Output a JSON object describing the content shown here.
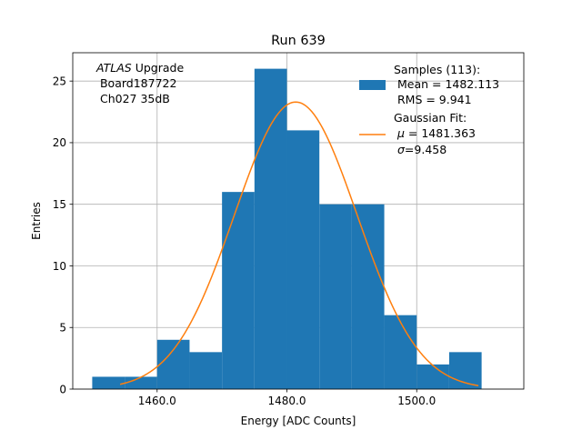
{
  "chart_data": {
    "type": "histogram",
    "title": "Run 639",
    "xlabel": "Energy [ADC Counts]",
    "ylabel": "Entries",
    "xlim": [
      1447.0,
      1516.5
    ],
    "ylim": [
      0,
      27.3
    ],
    "grid": true,
    "xticks": [
      1460,
      1480,
      1500
    ],
    "xtick_labels": [
      "1460.0",
      "1480.0",
      "1500.0"
    ],
    "yticks": [
      0,
      5,
      10,
      15,
      20,
      25
    ],
    "ytick_labels": [
      "0",
      "5",
      "10",
      "15",
      "20",
      "25"
    ],
    "bin_edges": [
      1450,
      1455,
      1460,
      1465,
      1470,
      1475,
      1480,
      1485,
      1490,
      1495,
      1500,
      1505,
      1510
    ],
    "counts": [
      1,
      1,
      4,
      3,
      16,
      26,
      21,
      15,
      15,
      6,
      2,
      3
    ],
    "bar_color": "#1f77b4",
    "fit": {
      "type": "gaussian",
      "color": "#ff7f0e",
      "mu": 1481.363,
      "sigma": 9.458,
      "amplitude": 23.3,
      "x_range": [
        1454.3,
        1509.5
      ]
    },
    "annotation": {
      "line1_italic": "ATLAS",
      "line1_rest": " Upgrade",
      "line2": " Board187722",
      "line3": " Ch027 35dB"
    },
    "legend": {
      "placement": "upper right",
      "samples_title": "Samples (113):",
      "samples_mean": " Mean = 1482.113",
      "samples_rms": " RMS = 9.941",
      "fit_title": "Gaussian Fit:",
      "fit_mu_symbol": "μ",
      "fit_mu_value": " = 1481.363",
      "fit_sigma_symbol": "σ",
      "fit_sigma_value": "=9.458"
    }
  }
}
